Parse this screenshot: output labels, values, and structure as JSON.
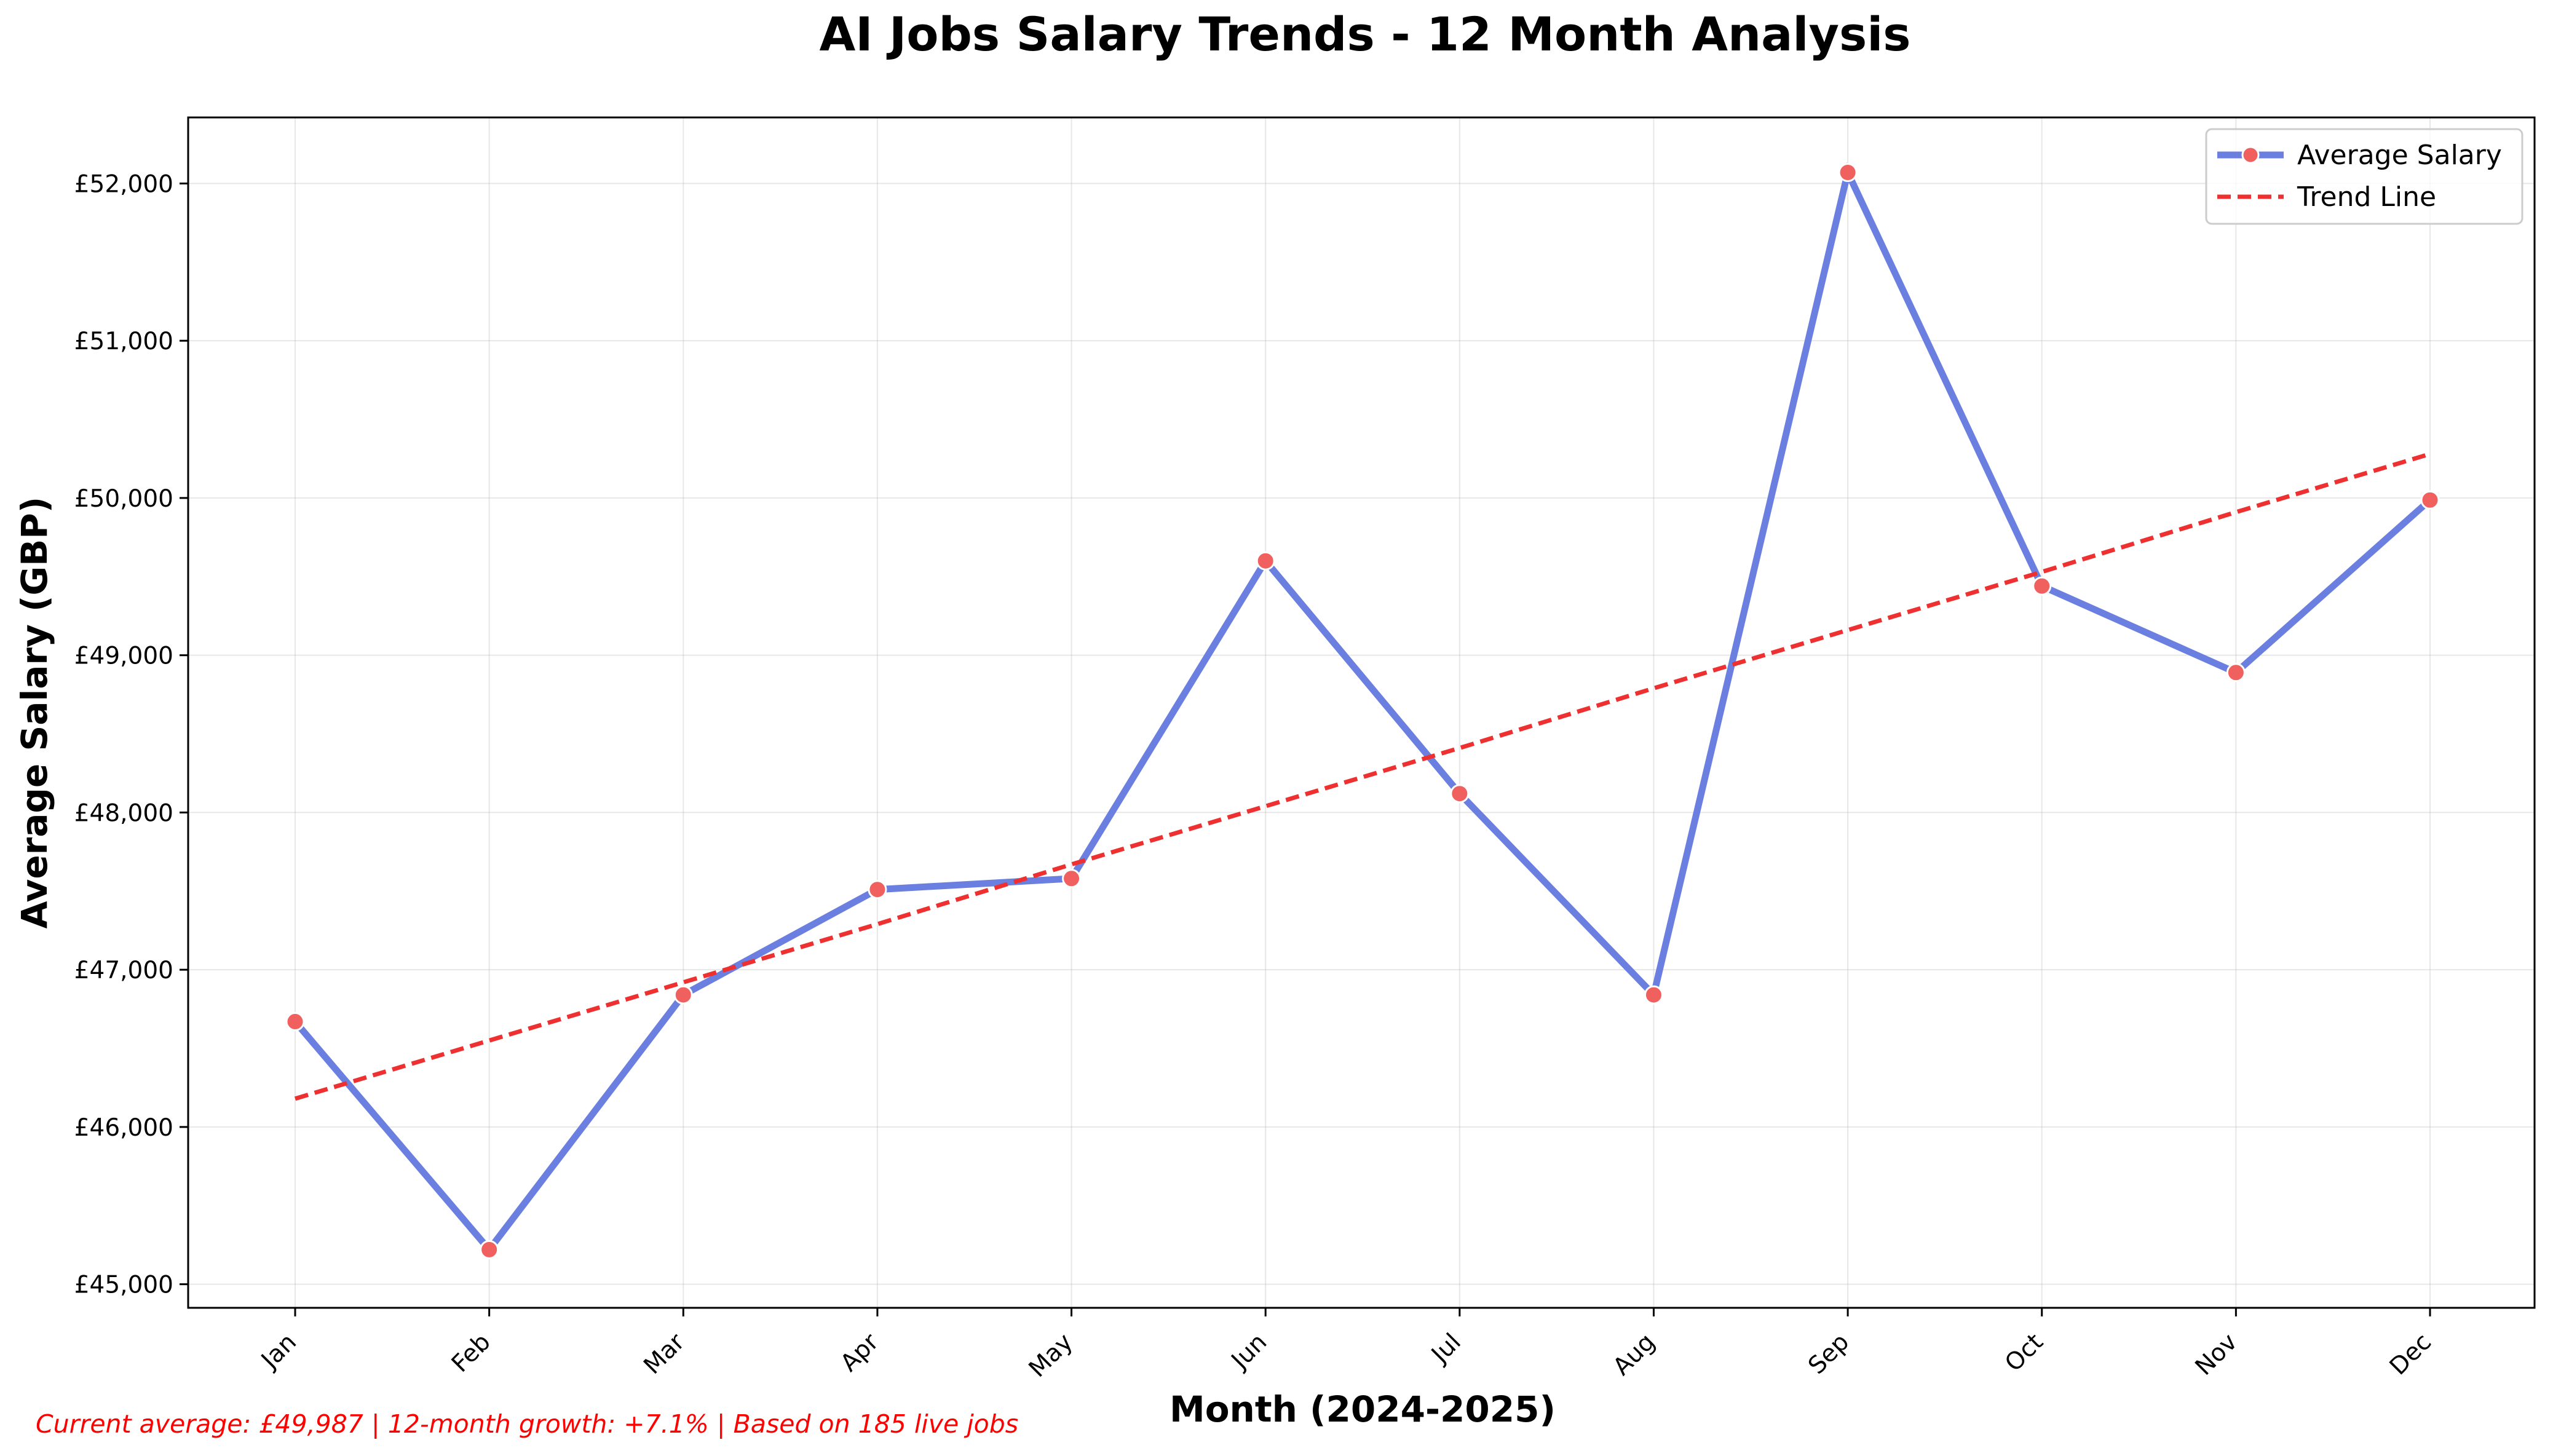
{
  "chart_data": {
    "type": "line",
    "title": "AI Jobs Salary Trends - 12 Month Analysis",
    "xlabel": "Month (2024-2025)",
    "ylabel": "Average Salary (GBP)",
    "categories": [
      "Jan",
      "Feb",
      "Mar",
      "Apr",
      "May",
      "Jun",
      "Jul",
      "Aug",
      "Sep",
      "Oct",
      "Nov",
      "Dec"
    ],
    "ylim": [
      44850,
      52420
    ],
    "yticks": [
      45000,
      46000,
      47000,
      48000,
      49000,
      50000,
      51000,
      52000
    ],
    "ytick_labels": [
      "£45,000",
      "£46,000",
      "£47,000",
      "£48,000",
      "£49,000",
      "£50,000",
      "£51,000",
      "£52,000"
    ],
    "grid": true,
    "legend_position": "top-right",
    "series": [
      {
        "name": "Average Salary",
        "style": "solid line with circle markers",
        "color": "#6a7fe0",
        "marker_color": "#f0605e",
        "values": [
          46670,
          45220,
          46840,
          47510,
          47580,
          49600,
          48120,
          46840,
          52070,
          49440,
          48890,
          49987
        ]
      },
      {
        "name": "Trend Line",
        "style": "dashed",
        "color": "#ee3030",
        "values": [
          46180,
          46550,
          46920,
          47290,
          47670,
          48040,
          48410,
          48790,
          49160,
          49530,
          49910,
          50280
        ]
      }
    ]
  },
  "footnote": {
    "text": "Current average: £49,987 | 12-month growth: +7.1% | Based on 185 live jobs",
    "color": "#ff0000"
  }
}
